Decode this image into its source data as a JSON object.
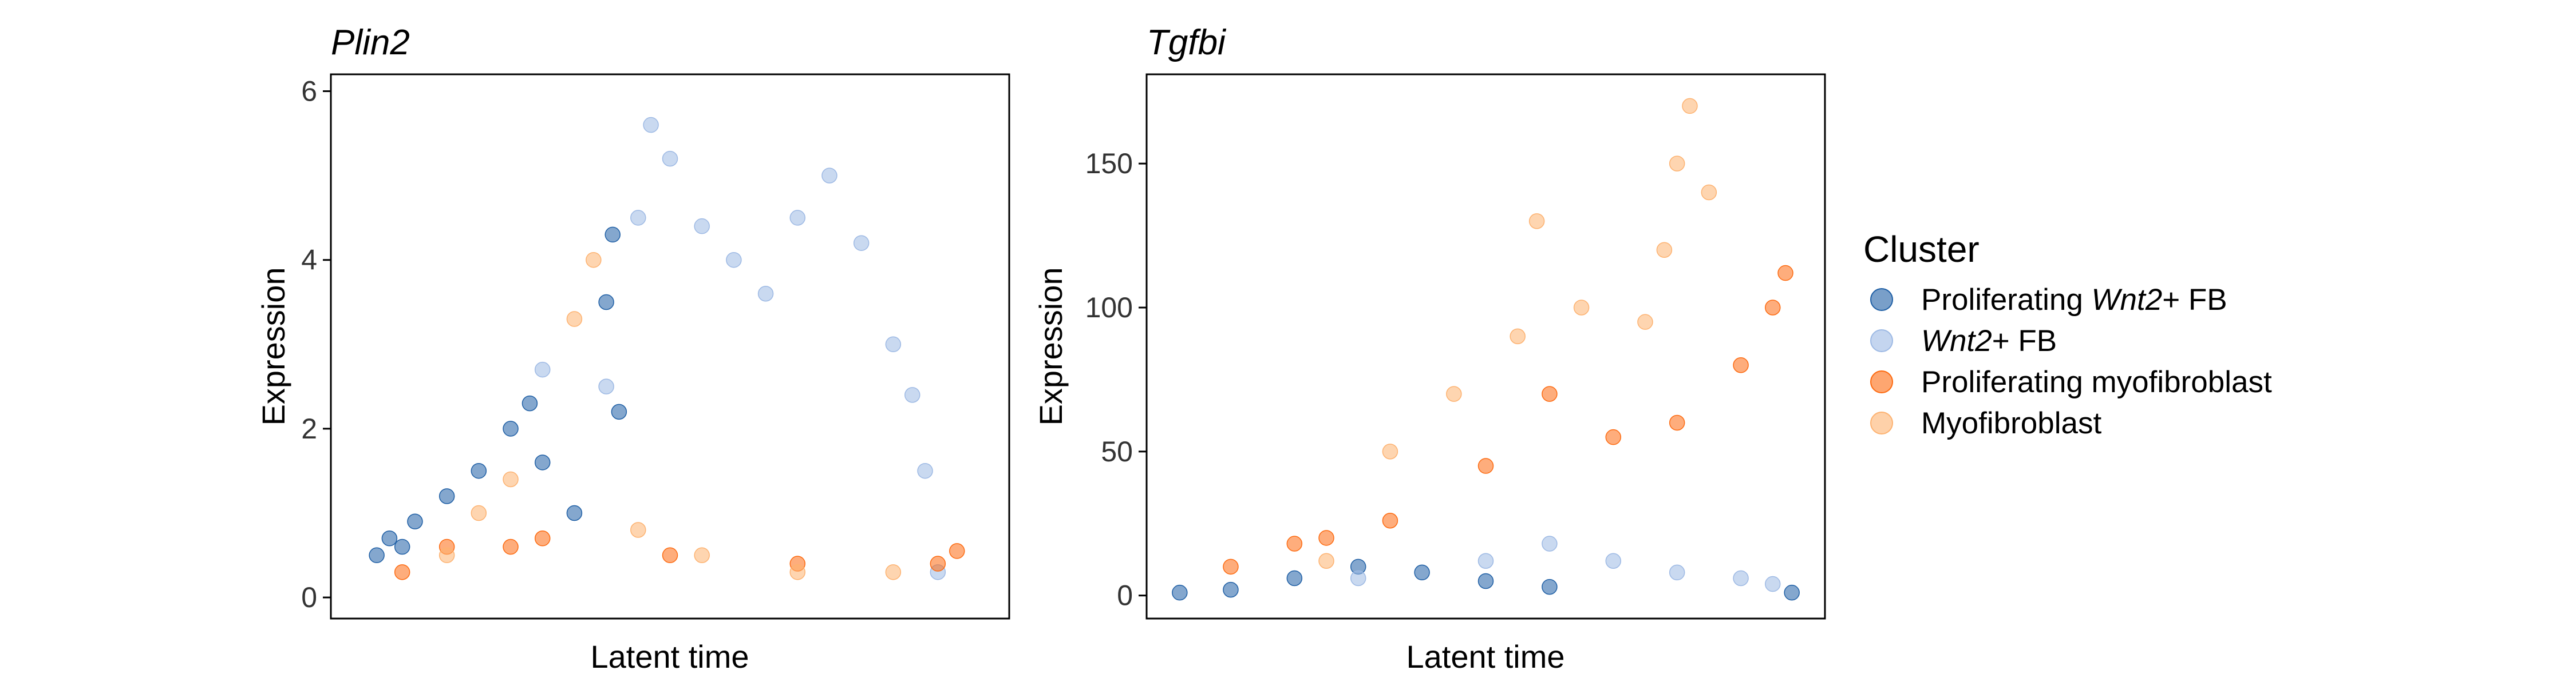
{
  "chart_data": [
    {
      "type": "scatter",
      "title": "Plin2",
      "xlabel": "Latent time",
      "ylabel": "Expression",
      "ylim": [
        -0.25,
        6.2
      ],
      "y_ticks": [
        "0",
        "2",
        "4",
        "6"
      ],
      "x_ticks": [],
      "grid": false,
      "x_range": [
        0,
        1
      ],
      "series": [
        {
          "name": "Proliferating Wnt2+ FB",
          "color": "#1f5fa5",
          "points": [
            [
              0.04,
              0.5
            ],
            [
              0.06,
              0.7
            ],
            [
              0.08,
              0.6
            ],
            [
              0.1,
              0.9
            ],
            [
              0.15,
              1.2
            ],
            [
              0.2,
              1.5
            ],
            [
              0.25,
              2.0
            ],
            [
              0.28,
              2.3
            ],
            [
              0.3,
              1.6
            ],
            [
              0.35,
              1.0
            ],
            [
              0.4,
              3.5
            ],
            [
              0.41,
              4.3
            ],
            [
              0.42,
              2.2
            ]
          ]
        },
        {
          "name": "Wnt2+ FB",
          "color": "#9db9e4",
          "points": [
            [
              0.3,
              2.7
            ],
            [
              0.4,
              2.5
            ],
            [
              0.45,
              4.5
            ],
            [
              0.47,
              5.6
            ],
            [
              0.5,
              5.2
            ],
            [
              0.55,
              4.4
            ],
            [
              0.6,
              4.0
            ],
            [
              0.65,
              3.6
            ],
            [
              0.7,
              4.5
            ],
            [
              0.75,
              5.0
            ],
            [
              0.8,
              4.2
            ],
            [
              0.85,
              3.0
            ],
            [
              0.88,
              2.4
            ],
            [
              0.9,
              1.5
            ],
            [
              0.92,
              0.3
            ]
          ]
        },
        {
          "name": "Proliferating myofibroblast",
          "color": "#fd6a10",
          "points": [
            [
              0.08,
              0.3
            ],
            [
              0.15,
              0.6
            ],
            [
              0.25,
              0.6
            ],
            [
              0.3,
              0.7
            ],
            [
              0.5,
              0.5
            ],
            [
              0.7,
              0.4
            ],
            [
              0.92,
              0.4
            ],
            [
              0.95,
              0.55
            ]
          ]
        },
        {
          "name": "Myofibroblast",
          "color": "#fdb270",
          "points": [
            [
              0.15,
              0.5
            ],
            [
              0.2,
              1.0
            ],
            [
              0.25,
              1.4
            ],
            [
              0.35,
              3.3
            ],
            [
              0.38,
              4.0
            ],
            [
              0.45,
              0.8
            ],
            [
              0.55,
              0.5
            ],
            [
              0.7,
              0.3
            ],
            [
              0.85,
              0.3
            ]
          ]
        }
      ]
    },
    {
      "type": "scatter",
      "title": "Tgfbi",
      "xlabel": "Latent time",
      "ylabel": "Expression",
      "ylim": [
        -8,
        181
      ],
      "y_ticks": [
        "0",
        "50",
        "100",
        "150"
      ],
      "x_ticks": [],
      "grid": false,
      "x_range": [
        0,
        1
      ],
      "series": [
        {
          "name": "Proliferating Wnt2+ FB",
          "color": "#1f5fa5",
          "points": [
            [
              0.02,
              1
            ],
            [
              0.1,
              2
            ],
            [
              0.2,
              6
            ],
            [
              0.3,
              10
            ],
            [
              0.4,
              8
            ],
            [
              0.5,
              5
            ],
            [
              0.6,
              3
            ],
            [
              0.98,
              1
            ]
          ]
        },
        {
          "name": "Wnt2+ FB",
          "color": "#9db9e4",
          "points": [
            [
              0.3,
              6
            ],
            [
              0.5,
              12
            ],
            [
              0.6,
              18
            ],
            [
              0.7,
              12
            ],
            [
              0.8,
              8
            ],
            [
              0.9,
              6
            ],
            [
              0.95,
              4
            ]
          ]
        },
        {
          "name": "Proliferating myofibroblast",
          "color": "#fd6a10",
          "points": [
            [
              0.1,
              10
            ],
            [
              0.2,
              18
            ],
            [
              0.25,
              20
            ],
            [
              0.35,
              26
            ],
            [
              0.5,
              45
            ],
            [
              0.6,
              70
            ],
            [
              0.7,
              55
            ],
            [
              0.8,
              60
            ],
            [
              0.9,
              80
            ],
            [
              0.95,
              100
            ],
            [
              0.97,
              112
            ]
          ]
        },
        {
          "name": "Myofibroblast",
          "color": "#fdb270",
          "points": [
            [
              0.25,
              12
            ],
            [
              0.35,
              50
            ],
            [
              0.45,
              70
            ],
            [
              0.55,
              90
            ],
            [
              0.58,
              130
            ],
            [
              0.65,
              100
            ],
            [
              0.75,
              95
            ],
            [
              0.78,
              120
            ],
            [
              0.8,
              150
            ],
            [
              0.82,
              170
            ],
            [
              0.85,
              140
            ]
          ]
        }
      ]
    }
  ],
  "legend": {
    "title": "Cluster",
    "placement": "right",
    "items": [
      {
        "prefix": "Proliferating ",
        "italic": "Wnt2",
        "suffix": "+ FB",
        "color": "#1f5fa5"
      },
      {
        "prefix": "",
        "italic": "Wnt2",
        "suffix": "+ FB",
        "color": "#9db9e4"
      },
      {
        "prefix": "Proliferating myofibroblast",
        "italic": "",
        "suffix": "",
        "color": "#fd6a10"
      },
      {
        "prefix": "Myofibroblast",
        "italic": "",
        "suffix": "",
        "color": "#fdb270"
      }
    ]
  }
}
